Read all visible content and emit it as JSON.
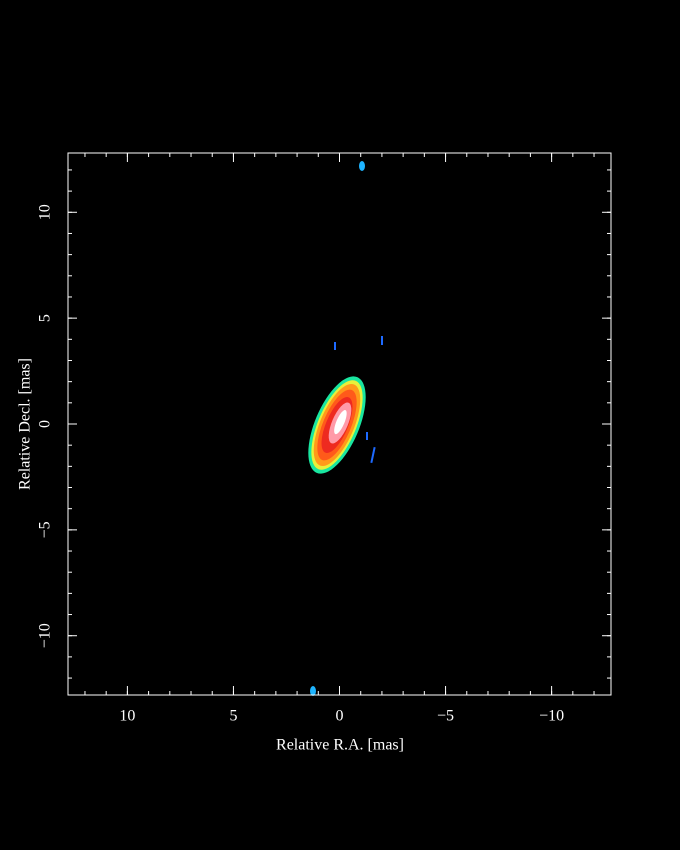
{
  "chart_data": {
    "type": "image",
    "xlabel": "Relative R.A. [mas]",
    "ylabel": "Relative Decl. [mas]",
    "xlim": [
      12.8,
      -12.8
    ],
    "ylim": [
      -12.8,
      12.8
    ],
    "xticks": [
      10,
      5,
      0,
      {
        "value": -5,
        "label": "−5"
      },
      {
        "value": -10,
        "label": "−10"
      }
    ],
    "yticks": [
      {
        "value": -10,
        "label": "−10"
      },
      {
        "value": -5,
        "label": "−5"
      },
      0,
      5,
      10
    ],
    "color": "#ffffff"
  }
}
